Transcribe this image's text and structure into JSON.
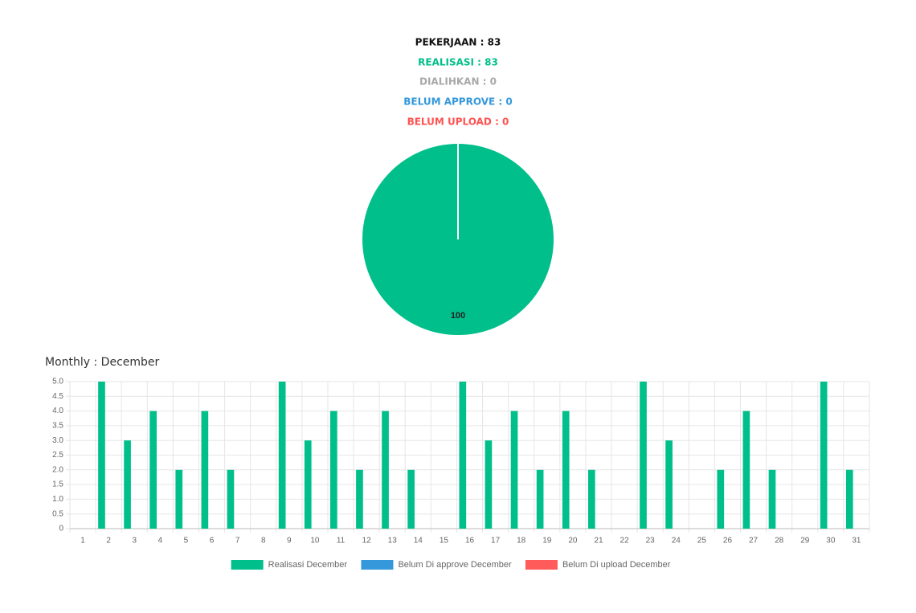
{
  "summary": [
    "PEKERJAAN : 83",
    "REALISASI : 83",
    "DIALIHKAN : 0",
    "BELUM APPROVE : 0",
    "BELUM UPLOAD : 0"
  ],
  "chart_data": [
    {
      "type": "pie",
      "values": [
        100
      ],
      "colors": [
        "#00bf8a"
      ]
    },
    {
      "type": "bar",
      "title": "Monthly : December",
      "categories": [
        "1",
        "2",
        "3",
        "4",
        "5",
        "6",
        "7",
        "8",
        "9",
        "10",
        "11",
        "12",
        "13",
        "14",
        "15",
        "16",
        "17",
        "18",
        "19",
        "20",
        "21",
        "22",
        "23",
        "24",
        "25",
        "26",
        "27",
        "28",
        "29",
        "30",
        "31"
      ],
      "series": [
        {
          "name": "Realisasi December",
          "color": "#00bf8a",
          "values": [
            0,
            5,
            3,
            4,
            2,
            4,
            2,
            0,
            5,
            3,
            4,
            2,
            4,
            2,
            0,
            5,
            3,
            4,
            2,
            4,
            2,
            0,
            5,
            3,
            0,
            2,
            4,
            2,
            0,
            5,
            2
          ]
        },
        {
          "name": "Belum Di approve December",
          "color": "#3498db",
          "values": [
            0,
            0,
            0,
            0,
            0,
            0,
            0,
            0,
            0,
            0,
            0,
            0,
            0,
            0,
            0,
            0,
            0,
            0,
            0,
            0,
            0,
            0,
            0,
            0,
            0,
            0,
            0,
            0,
            0,
            0,
            0
          ]
        },
        {
          "name": "Belum Di upload December",
          "color": "#ff5b5b",
          "values": [
            0,
            0,
            0,
            0,
            0,
            0,
            0,
            0,
            0,
            0,
            0,
            0,
            0,
            0,
            0,
            0,
            0,
            0,
            0,
            0,
            0,
            0,
            0,
            0,
            0,
            0,
            0,
            0,
            0,
            0,
            0
          ]
        }
      ],
      "ylim": [
        0,
        5
      ],
      "yticks": [
        0,
        0.5,
        {
          "value": 1,
          "label": "1.0"
        },
        1.5,
        {
          "value": 2,
          "label": "2.0"
        },
        2.5,
        {
          "value": 3,
          "label": "3.0"
        },
        3.5,
        {
          "value": 4,
          "label": "4.0"
        },
        4.5,
        {
          "value": 5,
          "label": "5.0"
        }
      ],
      "grid": true
    }
  ]
}
